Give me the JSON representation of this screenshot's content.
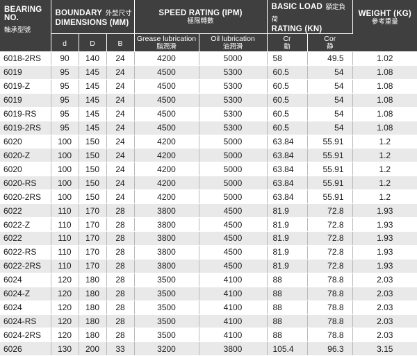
{
  "header": {
    "bearing_no": "BEARING NO.",
    "bearing_no_cn": "軸承型號",
    "boundary": "BOUNDARY",
    "boundary_cn": "外型尺寸",
    "dimensions": "DIMENSIONS (MM)",
    "speed": "SPEED RATING (IPM)",
    "speed_cn": "極限轉數",
    "basic": "BASIC LOAD",
    "basic_cn": "額定負荷",
    "rating_kn": "RATING (KN)",
    "weight": "WEIGHT (KG)",
    "weight_cn": "參考重量",
    "d": "d",
    "D": "D",
    "B": "B",
    "grease": "Grease lubrication",
    "grease_cn": "脂潤滑",
    "oil": "Oil lubrication",
    "oil_cn": "油潤滑",
    "cr": "Cr",
    "cr_cn": "動",
    "cor": "Cor",
    "cor_cn": "静"
  },
  "rows": [
    {
      "bearing": "6018-2RS",
      "d": "90",
      "D": "140",
      "B": "24",
      "grease": "4200",
      "oil": "5000",
      "cr": "58",
      "cor": "49.5",
      "weight": "1.02"
    },
    {
      "bearing": "6019",
      "d": "95",
      "D": "145",
      "B": "24",
      "grease": "4500",
      "oil": "5300",
      "cr": "60.5",
      "cor": "54",
      "weight": "1.08"
    },
    {
      "bearing": "6019-Z",
      "d": "95",
      "D": "145",
      "B": "24",
      "grease": "4500",
      "oil": "5300",
      "cr": "60.5",
      "cor": "54",
      "weight": "1.08"
    },
    {
      "bearing": "6019",
      "d": "95",
      "D": "145",
      "B": "24",
      "grease": "4500",
      "oil": "5300",
      "cr": "60.5",
      "cor": "54",
      "weight": "1.08"
    },
    {
      "bearing": "6019-RS",
      "d": "95",
      "D": "145",
      "B": "24",
      "grease": "4500",
      "oil": "5300",
      "cr": "60.5",
      "cor": "54",
      "weight": "1.08"
    },
    {
      "bearing": "6019-2RS",
      "d": "95",
      "D": "145",
      "B": "24",
      "grease": "4500",
      "oil": "5300",
      "cr": "60.5",
      "cor": "54",
      "weight": "1.08"
    },
    {
      "bearing": "6020",
      "d": "100",
      "D": "150",
      "B": "24",
      "grease": "4200",
      "oil": "5000",
      "cr": "63.84",
      "cor": "55.91",
      "weight": "1.2"
    },
    {
      "bearing": "6020-Z",
      "d": "100",
      "D": "150",
      "B": "24",
      "grease": "4200",
      "oil": "5000",
      "cr": "63.84",
      "cor": "55.91",
      "weight": "1.2"
    },
    {
      "bearing": "6020",
      "d": "100",
      "D": "150",
      "B": "24",
      "grease": "4200",
      "oil": "5000",
      "cr": "63.84",
      "cor": "55.91",
      "weight": "1.2"
    },
    {
      "bearing": "6020-RS",
      "d": "100",
      "D": "150",
      "B": "24",
      "grease": "4200",
      "oil": "5000",
      "cr": "63.84",
      "cor": "55.91",
      "weight": "1.2"
    },
    {
      "bearing": "6020-2RS",
      "d": "100",
      "D": "150",
      "B": "24",
      "grease": "4200",
      "oil": "5000",
      "cr": "63.84",
      "cor": "55.91",
      "weight": "1.2"
    },
    {
      "bearing": "6022",
      "d": "110",
      "D": "170",
      "B": "28",
      "grease": "3800",
      "oil": "4500",
      "cr": "81.9",
      "cor": "72.8",
      "weight": "1.93"
    },
    {
      "bearing": "6022-Z",
      "d": "110",
      "D": "170",
      "B": "28",
      "grease": "3800",
      "oil": "4500",
      "cr": "81.9",
      "cor": "72.8",
      "weight": "1.93"
    },
    {
      "bearing": "6022",
      "d": "110",
      "D": "170",
      "B": "28",
      "grease": "3800",
      "oil": "4500",
      "cr": "81.9",
      "cor": "72.8",
      "weight": "1.93"
    },
    {
      "bearing": "6022-RS",
      "d": "110",
      "D": "170",
      "B": "28",
      "grease": "3800",
      "oil": "4500",
      "cr": "81.9",
      "cor": "72.8",
      "weight": "1.93"
    },
    {
      "bearing": "6022-2RS",
      "d": "110",
      "D": "170",
      "B": "28",
      "grease": "3800",
      "oil": "4500",
      "cr": "81.9",
      "cor": "72.8",
      "weight": "1.93"
    },
    {
      "bearing": "6024",
      "d": "120",
      "D": "180",
      "B": "28",
      "grease": "3500",
      "oil": "4100",
      "cr": "88",
      "cor": "78.8",
      "weight": "2.03"
    },
    {
      "bearing": "6024-Z",
      "d": "120",
      "D": "180",
      "B": "28",
      "grease": "3500",
      "oil": "4100",
      "cr": "88",
      "cor": "78.8",
      "weight": "2.03"
    },
    {
      "bearing": "6024",
      "d": "120",
      "D": "180",
      "B": "28",
      "grease": "3500",
      "oil": "4100",
      "cr": "88",
      "cor": "78.8",
      "weight": "2.03"
    },
    {
      "bearing": "6024-RS",
      "d": "120",
      "D": "180",
      "B": "28",
      "grease": "3500",
      "oil": "4100",
      "cr": "88",
      "cor": "78.8",
      "weight": "2.03"
    },
    {
      "bearing": "6024-2RS",
      "d": "120",
      "D": "180",
      "B": "28",
      "grease": "3500",
      "oil": "4100",
      "cr": "88",
      "cor": "78.8",
      "weight": "2.03"
    },
    {
      "bearing": "6026",
      "d": "130",
      "D": "200",
      "B": "33",
      "grease": "3200",
      "oil": "3800",
      "cr": "105.4",
      "cor": "96.3",
      "weight": "3.15"
    }
  ]
}
